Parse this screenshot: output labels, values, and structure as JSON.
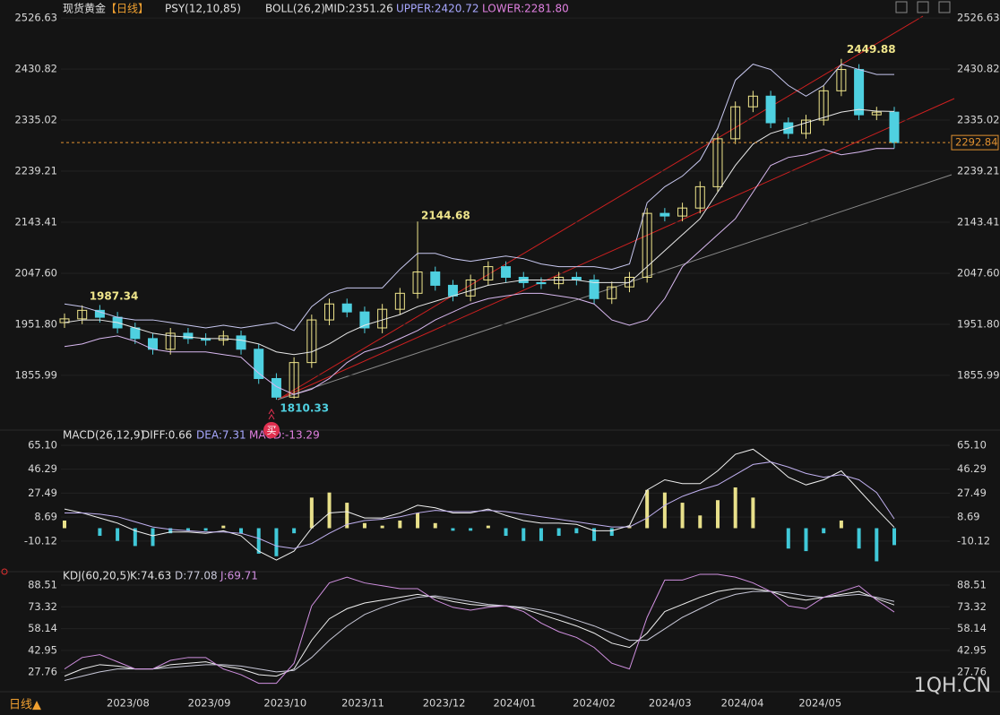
{
  "chart_data": [
    {
      "type": "candlestick",
      "title": "现货黄金",
      "period": "【日线】",
      "indicators": [
        "PSY(12,10,85)",
        "BOLL(26,2)",
        "MID:2351.26",
        "UPPER:2420.72",
        "LOWER:2281.80"
      ],
      "signal": "买",
      "open": [
        1955,
        1962,
        1978,
        1965,
        1945,
        1925,
        1905,
        1935,
        1925,
        1922,
        1930,
        1905,
        1850,
        1815,
        1880,
        1960,
        1990,
        1975,
        1945,
        1980,
        2010,
        2050,
        2025,
        2005,
        2035,
        2060,
        2040,
        2030,
        2028,
        2040,
        2035,
        2000,
        2022,
        2040,
        2160,
        2155,
        2170,
        2210,
        2300,
        2360,
        2380,
        2330,
        2310,
        2335,
        2390,
        2430,
        2345,
        2350
      ],
      "high": [
        1972,
        1987.34,
        1988,
        1975,
        1955,
        1935,
        1945,
        1945,
        1935,
        1940,
        1940,
        1915,
        1860,
        1890,
        1970,
        2000,
        2000,
        1985,
        1990,
        2020,
        2144.68,
        2060,
        2035,
        2045,
        2070,
        2070,
        2050,
        2040,
        2050,
        2050,
        2045,
        2032,
        2050,
        2170,
        2170,
        2180,
        2220,
        2310,
        2370,
        2390,
        2390,
        2340,
        2345,
        2400,
        2449.88,
        2440,
        2360,
        2360
      ],
      "low": [
        1945,
        1952,
        1955,
        1935,
        1915,
        1895,
        1895,
        1915,
        1912,
        1912,
        1895,
        1840,
        1810.33,
        1812,
        1870,
        1950,
        1965,
        1935,
        1935,
        1970,
        2000,
        2015,
        1995,
        1995,
        2025,
        2030,
        2020,
        2018,
        2018,
        2025,
        1990,
        1990,
        2012,
        2030,
        2145,
        2145,
        2160,
        2200,
        2290,
        2350,
        2320,
        2300,
        2300,
        2325,
        2380,
        2335,
        2335,
        2282
      ],
      "close": [
        1962,
        1978,
        1965,
        1945,
        1925,
        1905,
        1935,
        1925,
        1922,
        1930,
        1905,
        1850,
        1815,
        1880,
        1960,
        1990,
        1975,
        1945,
        1980,
        2010,
        2050,
        2025,
        2005,
        2035,
        2060,
        2040,
        2030,
        2028,
        2040,
        2035,
        2000,
        2022,
        2040,
        2160,
        2155,
        2170,
        2210,
        2300,
        2360,
        2380,
        2330,
        2310,
        2335,
        2390,
        2430,
        2345,
        2350,
        2292.84
      ],
      "series": [
        {
          "color": "#c8c8f0",
          "values": [
            1990,
            1985,
            1975,
            1965,
            1960,
            1960,
            1955,
            1950,
            1945,
            1950,
            1945,
            1950,
            1955,
            1940,
            1985,
            2010,
            2020,
            2020,
            2020,
            2055,
            2085,
            2085,
            2075,
            2070,
            2075,
            2080,
            2075,
            2065,
            2060,
            2060,
            2060,
            2055,
            2065,
            2180,
            2210,
            2230,
            2260,
            2320,
            2410,
            2440,
            2430,
            2400,
            2380,
            2400,
            2440,
            2430,
            2420.72,
            2420.72
          ]
        },
        {
          "color": "#e8e8e8",
          "values": [
            1955,
            1960,
            1960,
            1955,
            1945,
            1935,
            1930,
            1928,
            1925,
            1925,
            1922,
            1915,
            1900,
            1895,
            1900,
            1915,
            1935,
            1950,
            1960,
            1970,
            1985,
            1995,
            2005,
            2015,
            2025,
            2030,
            2035,
            2035,
            2035,
            2035,
            2030,
            2030,
            2030,
            2060,
            2090,
            2120,
            2150,
            2200,
            2250,
            2290,
            2310,
            2320,
            2330,
            2340,
            2350,
            2355,
            2352,
            2351.26
          ]
        },
        {
          "color": "#d8b8f0",
          "values": [
            1910,
            1915,
            1925,
            1930,
            1920,
            1905,
            1900,
            1900,
            1900,
            1895,
            1890,
            1860,
            1835,
            1820,
            1830,
            1850,
            1880,
            1900,
            1910,
            1925,
            1940,
            1960,
            1975,
            1990,
            2000,
            2005,
            2010,
            2010,
            2005,
            2000,
            1990,
            1960,
            1950,
            1960,
            2000,
            2060,
            2090,
            2120,
            2150,
            2200,
            2250,
            2265,
            2270,
            2280,
            2270,
            2275,
            2282,
            2281.8
          ]
        }
      ],
      "up_color": "#f0e68c",
      "down_color": "#4fd0e0",
      "ylim": [
        1760,
        2545.3
      ],
      "yticks": [
        2526.63,
        2430.82,
        2335.02,
        2239.21,
        2143.41,
        {
          "value": 2047.6,
          "label": "2047.60"
        },
        {
          "value": 1951.8,
          "label": "1951.80"
        },
        1855.99
      ],
      "xlim": [
        0,
        47
      ],
      "xticks": [
        {
          "value": 3.6,
          "label": "2023/08"
        },
        {
          "value": 8.2,
          "label": "2023/09"
        },
        {
          "value": 12.5,
          "label": "2023/10"
        },
        {
          "value": 16.9,
          "label": "2023/11"
        },
        {
          "value": 21.5,
          "label": "2023/12"
        },
        {
          "value": 25.5,
          "label": "2024/01"
        },
        {
          "value": 30,
          "label": "2024/02"
        },
        {
          "value": 34.3,
          "label": "2024/03"
        },
        {
          "value": 38.4,
          "label": "2024/04"
        },
        {
          "value": 42.8,
          "label": "2024/05"
        }
      ],
      "grid": true
    },
    {
      "type": "combo",
      "title": "MACD(26,12,9)",
      "indicators": [
        "DIFF:0.66",
        "DEA:7.31",
        "MACD:-13.29"
      ],
      "series": [
        {
          "color": "#f0f0f0",
          "values": [
            15,
            12,
            8,
            4,
            -2,
            -6,
            -3,
            -3,
            -4,
            -2,
            -6,
            -18,
            -25,
            -18,
            0,
            12,
            13,
            8,
            8,
            12,
            18,
            16,
            12,
            12,
            15,
            10,
            6,
            4,
            4,
            3,
            -2,
            -2,
            2,
            30,
            38,
            35,
            35,
            45,
            58,
            62,
            52,
            40,
            34,
            38,
            45,
            30,
            15,
            0.66
          ]
        },
        {
          "color": "#c0b0f0",
          "values": [
            12,
            12,
            11,
            9,
            5,
            1,
            -1,
            -2,
            -3,
            -3,
            -4,
            -8,
            -14,
            -16,
            -12,
            -4,
            3,
            6,
            7,
            9,
            12,
            14,
            13,
            13,
            14,
            13,
            11,
            9,
            7,
            5,
            3,
            1,
            1,
            8,
            18,
            25,
            30,
            34,
            42,
            50,
            52,
            48,
            43,
            40,
            42,
            38,
            28,
            7.31
          ]
        }
      ],
      "values": [
        6,
        0,
        -6,
        -10,
        -14,
        -14,
        -4,
        -2,
        -2,
        2,
        -4,
        -20,
        -22,
        -4,
        24,
        28,
        20,
        4,
        2,
        6,
        12,
        4,
        -2,
        -2,
        2,
        -6,
        -10,
        -10,
        -6,
        -4,
        -10,
        -6,
        2,
        30,
        28,
        20,
        10,
        22,
        32,
        24,
        0,
        -16,
        -18,
        -4,
        6,
        -16,
        -26,
        -13.29
      ],
      "up_color": "#e8e08a",
      "down_color": "#40c8d8",
      "ylim": [
        -32,
        73.5
      ],
      "yticks": [
        {
          "value": 65.1,
          "label": "65.10"
        },
        46.29,
        27.49,
        8.69,
        -10.12
      ],
      "grid": true
    },
    {
      "type": "line",
      "title": "KDJ(60,20,5)",
      "indicators": [
        "K:74.63",
        "D:77.08",
        "J:69.71"
      ],
      "series": [
        {
          "color": "#f0f0f0",
          "values": [
            25,
            30,
            33,
            32,
            30,
            30,
            33,
            34,
            35,
            32,
            30,
            26,
            25,
            30,
            50,
            65,
            72,
            76,
            78,
            80,
            82,
            80,
            77,
            75,
            74,
            74,
            72,
            68,
            64,
            60,
            55,
            48,
            45,
            55,
            70,
            75,
            80,
            84,
            86,
            86,
            84,
            80,
            78,
            80,
            82,
            84,
            79,
            74.63
          ]
        },
        {
          "color": "#c8c8d8",
          "values": [
            22,
            25,
            28,
            30,
            30,
            30,
            31,
            32,
            33,
            33,
            32,
            30,
            28,
            29,
            38,
            50,
            60,
            68,
            73,
            77,
            80,
            81,
            79,
            77,
            75,
            74,
            73,
            71,
            68,
            64,
            60,
            55,
            50,
            50,
            58,
            66,
            72,
            78,
            82,
            84,
            84,
            83,
            81,
            80,
            81,
            82,
            80,
            77.08
          ]
        },
        {
          "color": "#d090e0",
          "values": [
            30,
            38,
            40,
            35,
            30,
            30,
            36,
            38,
            38,
            30,
            26,
            20,
            20,
            34,
            74,
            90,
            94,
            90,
            88,
            86,
            86,
            78,
            73,
            71,
            73,
            74,
            70,
            62,
            56,
            52,
            45,
            34,
            30,
            66,
            92,
            92,
            96,
            96,
            94,
            90,
            84,
            74,
            72,
            80,
            84,
            88,
            78,
            69.71
          ]
        }
      ],
      "ylim": [
        15.4,
        96.6
      ],
      "yticks": [
        88.51,
        73.32,
        58.14,
        42.95,
        27.76
      ],
      "grid": true
    }
  ],
  "footer": {
    "period_button": "日线▲",
    "watermark": "1QH.CN"
  }
}
